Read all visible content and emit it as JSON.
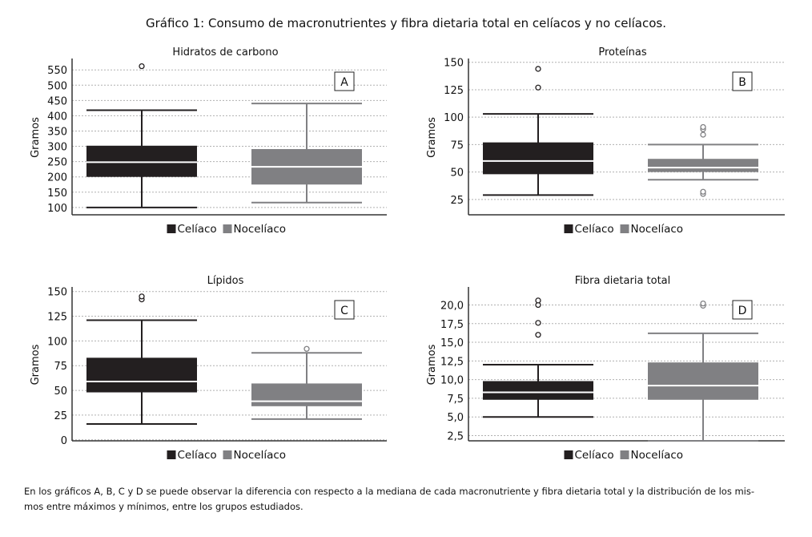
{
  "title": "Gráfico 1: Consumo de macronutrientes y fibra dietaria total en celíacos y no celíacos.",
  "footer": {
    "line1": "En los gráficos A, B, C y D se puede observar la diferencia con respecto a la mediana de cada macronutriente y fibra dietaria total y la distribución de los mis-",
    "line2": "mos entre máximos y mínimos, entre los grupos estudiados."
  },
  "colors": {
    "celiaco": "#231f20",
    "nocelíaco": "#808083",
    "grid": "#b0b0b0"
  },
  "chart_data": [
    {
      "type": "box",
      "id": "A",
      "title": "Hidratos de carbono",
      "ylabel": "Gramos",
      "ylim": [
        76,
        582
      ],
      "yticks": [
        100,
        150,
        200,
        250,
        300,
        350,
        400,
        450,
        500,
        550
      ],
      "tick_labels": [
        "100",
        "150",
        "200",
        "250",
        "300",
        "350",
        "400",
        "450",
        "500",
        "550"
      ],
      "legend": [
        "Celíaco",
        "Nocelíaco"
      ],
      "legend_position": "bottom",
      "series": [
        {
          "name": "Celíaco",
          "min": 100,
          "q1": 200,
          "median": 248,
          "q3": 302,
          "max": 418,
          "outliers": [
            562
          ]
        },
        {
          "name": "Nocelíaco",
          "min": 116,
          "q1": 175,
          "median": 233,
          "q3": 291,
          "max": 440,
          "outliers": []
        }
      ]
    },
    {
      "type": "box",
      "id": "B",
      "title": "Proteínas",
      "ylabel": "Gramos",
      "ylim": [
        11,
        152
      ],
      "yticks": [
        25,
        50,
        75,
        100,
        125,
        150
      ],
      "tick_labels": [
        "25",
        "50",
        "75",
        "100",
        "125",
        "150"
      ],
      "legend": [
        "Celíaco",
        "Nocelíaco"
      ],
      "legend_position": "bottom",
      "series": [
        {
          "name": "Celíaco",
          "min": 29,
          "q1": 48,
          "median": 60,
          "q3": 77,
          "max": 103,
          "outliers": [
            127,
            144
          ]
        },
        {
          "name": "Nocelíaco",
          "min": 43,
          "q1": 50,
          "median": 54,
          "q3": 62,
          "max": 75,
          "outliers": [
            84,
            89,
            91,
            30,
            32
          ]
        }
      ]
    },
    {
      "type": "box",
      "id": "C",
      "title": "Lípidos",
      "ylabel": "Gramos",
      "ylim": [
        -1,
        153
      ],
      "yticks": [
        0,
        25,
        50,
        75,
        100,
        125,
        150
      ],
      "tick_labels": [
        "0",
        "25",
        "50",
        "75",
        "100",
        "125",
        "150"
      ],
      "legend": [
        "Celíaco",
        "Nocelíaco"
      ],
      "legend_position": "bottom",
      "series": [
        {
          "name": "Celíaco",
          "min": 16,
          "q1": 48,
          "median": 59,
          "q3": 83,
          "max": 121,
          "outliers": [
            142,
            145
          ]
        },
        {
          "name": "Nocelíaco",
          "min": 21,
          "q1": 34,
          "median": 39,
          "q3": 57,
          "max": 88,
          "outliers": [
            92
          ]
        }
      ]
    },
    {
      "type": "box",
      "id": "D",
      "title": "Fibra dietaria total",
      "ylabel": "Gramos",
      "ylim": [
        1.8,
        22.2
      ],
      "yticks": [
        2.5,
        5,
        7.5,
        10,
        12.5,
        15,
        17.5,
        20
      ],
      "tick_labels": [
        "2,5",
        "5,0",
        "7,5",
        "10,0",
        "12,5",
        "15,0",
        "17,5",
        "20,0"
      ],
      "legend": [
        "Celíaco",
        "Nocelíaco"
      ],
      "legend_position": "bottom",
      "series": [
        {
          "name": "Celíaco",
          "min": 5,
          "q1": 7.3,
          "median": 8.3,
          "q3": 9.8,
          "max": 12,
          "outliers": [
            16,
            17.6,
            20,
            20.6
          ]
        },
        {
          "name": "Nocelíaco",
          "min": 1.8,
          "q1": 7.3,
          "median": 9.2,
          "q3": 12.3,
          "max": 16.2,
          "outliers": [
            19.9,
            20.2
          ]
        }
      ]
    }
  ]
}
